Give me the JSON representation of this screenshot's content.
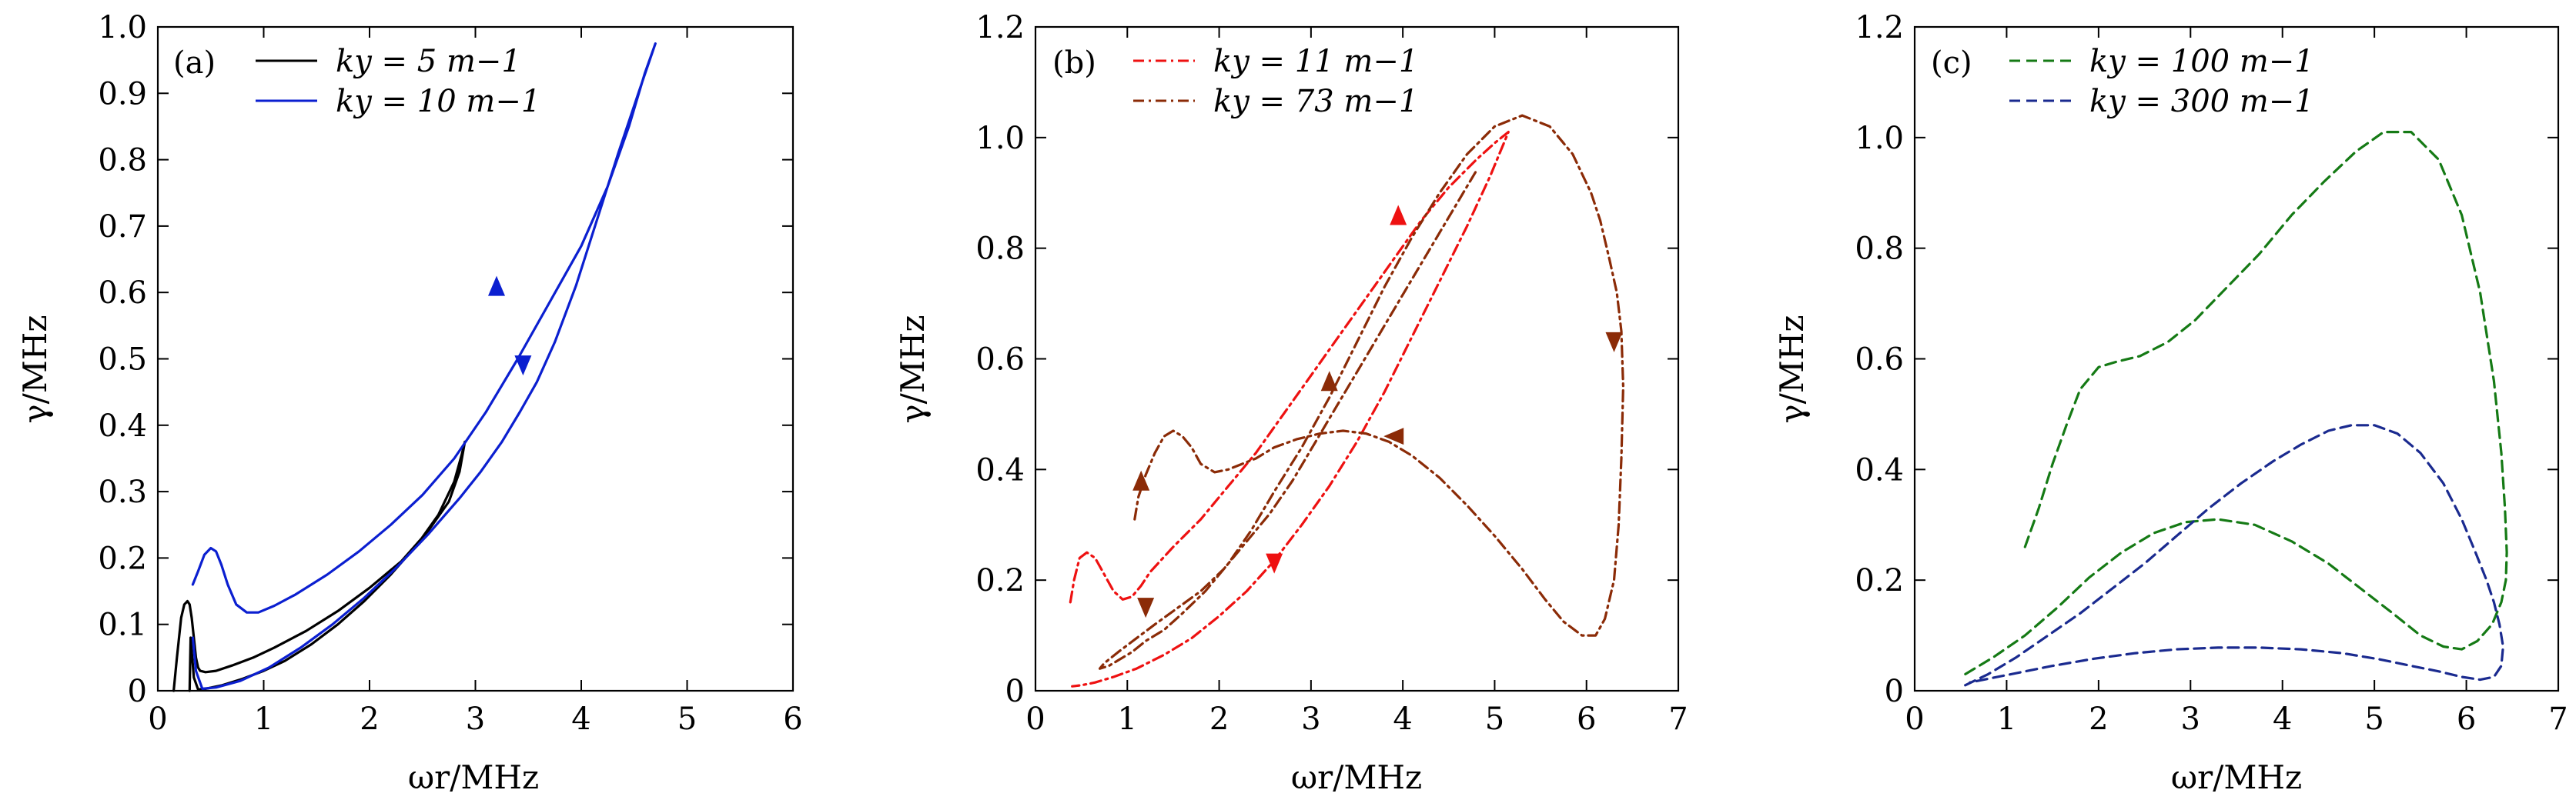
{
  "chart_data": [
    {
      "type": "line",
      "panel_label": "(a)",
      "xlabel": "ωr/MHz",
      "ylabel": "γ/MHz",
      "xlim": [
        0,
        6
      ],
      "ylim": [
        0,
        1.0
      ],
      "xticks": [
        "0",
        "1",
        "2",
        "3",
        "4",
        "5",
        "6"
      ],
      "yticks": [
        "0",
        "0.1",
        "0.2",
        "0.3",
        "0.4",
        "0.5",
        "0.6",
        "0.7",
        "0.8",
        "0.9",
        "1.0"
      ],
      "legend_position": "top-left",
      "series": [
        {
          "name": "ky = 5 m−1",
          "color": "#000000",
          "dash": "solid",
          "x": [
            0.15,
            0.18,
            0.22,
            0.25,
            0.28,
            0.3,
            0.32,
            0.34,
            0.36,
            0.38,
            0.4,
            0.45,
            0.55,
            0.7,
            0.9,
            1.1,
            1.4,
            1.7,
            2.0,
            2.3,
            2.55,
            2.75,
            2.85,
            2.9,
            2.87,
            2.8,
            2.65,
            2.45,
            2.2,
            1.95,
            1.7,
            1.45,
            1.2,
            1.0,
            0.8,
            0.6,
            0.45,
            0.38,
            0.34,
            0.32,
            0.31,
            0.3
          ],
          "y": [
            0.0,
            0.05,
            0.11,
            0.13,
            0.135,
            0.13,
            0.11,
            0.08,
            0.05,
            0.035,
            0.03,
            0.028,
            0.03,
            0.038,
            0.05,
            0.065,
            0.09,
            0.12,
            0.155,
            0.195,
            0.24,
            0.285,
            0.33,
            0.375,
            0.355,
            0.315,
            0.265,
            0.22,
            0.175,
            0.135,
            0.1,
            0.07,
            0.045,
            0.03,
            0.018,
            0.008,
            0.003,
            0.002,
            0.02,
            0.06,
            0.08,
            0.0
          ]
        },
        {
          "name": "ky = 10 m−1",
          "color": "#0b1fd0",
          "dash": "solid",
          "arrows": [
            [
              3.2,
              0.61,
              "up"
            ],
            [
              3.45,
              0.49,
              "down"
            ]
          ],
          "x": [
            0.33,
            0.38,
            0.44,
            0.5,
            0.55,
            0.6,
            0.66,
            0.74,
            0.84,
            0.95,
            1.1,
            1.3,
            1.6,
            1.9,
            2.2,
            2.5,
            2.8,
            3.1,
            3.4,
            3.7,
            4.0,
            4.25,
            4.45,
            4.6,
            4.7,
            4.55,
            4.35,
            4.15,
            3.95,
            3.75,
            3.58,
            3.42,
            3.25,
            3.05,
            2.85,
            2.55,
            2.25,
            1.95,
            1.65,
            1.35,
            1.05,
            0.78,
            0.55,
            0.42,
            0.36,
            0.33
          ],
          "y": [
            0.16,
            0.18,
            0.205,
            0.215,
            0.21,
            0.19,
            0.16,
            0.13,
            0.118,
            0.118,
            0.128,
            0.145,
            0.175,
            0.21,
            0.25,
            0.295,
            0.35,
            0.42,
            0.5,
            0.585,
            0.67,
            0.76,
            0.85,
            0.93,
            0.975,
            0.905,
            0.81,
            0.71,
            0.61,
            0.525,
            0.465,
            0.42,
            0.375,
            0.33,
            0.29,
            0.235,
            0.185,
            0.14,
            0.1,
            0.065,
            0.035,
            0.015,
            0.005,
            0.003,
            0.03,
            0.08
          ]
        }
      ]
    },
    {
      "type": "line",
      "panel_label": "(b)",
      "xlabel": "ωr/MHz",
      "ylabel": "γ/MHz",
      "xlim": [
        0,
        7
      ],
      "ylim": [
        0,
        1.2
      ],
      "xticks": [
        "0",
        "1",
        "2",
        "3",
        "4",
        "5",
        "6",
        "7"
      ],
      "yticks": [
        "0",
        "0.2",
        "0.4",
        "0.6",
        "0.8",
        "1.0",
        "1.2"
      ],
      "legend_position": "top-left",
      "series": [
        {
          "name": "ky = 11 m−1",
          "color": "#ee1111",
          "dash": "dashdot",
          "arrows": [
            [
              3.95,
              0.86,
              "up"
            ],
            [
              2.6,
              0.23,
              "down"
            ]
          ],
          "x": [
            0.38,
            0.42,
            0.48,
            0.56,
            0.65,
            0.75,
            0.85,
            0.95,
            1.05,
            1.15,
            1.25,
            1.5,
            1.8,
            2.1,
            2.4,
            2.7,
            3.0,
            3.3,
            3.6,
            3.9,
            4.2,
            4.5,
            4.8,
            5.0,
            5.15,
            5.1,
            4.95,
            4.7,
            4.4,
            4.1,
            3.8,
            3.5,
            3.2,
            2.9,
            2.6,
            2.3,
            2.0,
            1.7,
            1.4,
            1.1,
            0.85,
            0.65,
            0.5,
            0.4
          ],
          "y": [
            0.16,
            0.2,
            0.24,
            0.25,
            0.24,
            0.21,
            0.18,
            0.165,
            0.17,
            0.19,
            0.215,
            0.26,
            0.31,
            0.37,
            0.43,
            0.5,
            0.57,
            0.64,
            0.71,
            0.78,
            0.85,
            0.91,
            0.96,
            0.99,
            1.01,
            0.99,
            0.93,
            0.84,
            0.74,
            0.64,
            0.54,
            0.45,
            0.37,
            0.3,
            0.235,
            0.18,
            0.135,
            0.095,
            0.065,
            0.04,
            0.025,
            0.015,
            0.01,
            0.008
          ]
        },
        {
          "name": "ky = 73 m−1",
          "color": "#8b2b07",
          "dash": "dashdot",
          "arrows": [
            [
              1.15,
              0.38,
              "up"
            ],
            [
              1.2,
              0.15,
              "down"
            ],
            [
              3.2,
              0.56,
              "up"
            ],
            [
              6.3,
              0.63,
              "down"
            ],
            [
              3.9,
              0.46,
              "left"
            ]
          ],
          "x": [
            1.08,
            1.12,
            1.2,
            1.3,
            1.4,
            1.5,
            1.6,
            1.7,
            1.8,
            1.95,
            2.1,
            2.25,
            2.4,
            2.6,
            2.85,
            3.1,
            3.35,
            3.6,
            3.85,
            4.1,
            4.4,
            4.7,
            5.0,
            5.3,
            5.55,
            5.75,
            5.95,
            6.1,
            6.2,
            6.3,
            6.35,
            6.38,
            6.4,
            6.38,
            6.33,
            6.25,
            6.15,
            6.05,
            5.85,
            5.6,
            5.3,
            5.0,
            4.7,
            4.4,
            4.1,
            3.8,
            3.5,
            3.2,
            2.9,
            2.6,
            2.35,
            2.1,
            1.85,
            1.6,
            1.4,
            1.2,
            1.05,
            0.9,
            0.8,
            0.7,
            0.75,
            0.9,
            1.1,
            1.3,
            1.55,
            1.8,
            2.05,
            2.3,
            2.55,
            2.8,
            3.05,
            3.3,
            3.55,
            3.8,
            4.05,
            4.3,
            4.55,
            4.8
          ],
          "y": [
            0.31,
            0.35,
            0.39,
            0.43,
            0.46,
            0.47,
            0.46,
            0.44,
            0.41,
            0.395,
            0.4,
            0.41,
            0.42,
            0.44,
            0.455,
            0.465,
            0.47,
            0.465,
            0.45,
            0.425,
            0.385,
            0.335,
            0.28,
            0.22,
            0.165,
            0.125,
            0.1,
            0.1,
            0.13,
            0.2,
            0.3,
            0.42,
            0.55,
            0.65,
            0.72,
            0.78,
            0.85,
            0.9,
            0.97,
            1.02,
            1.04,
            1.02,
            0.97,
            0.9,
            0.82,
            0.73,
            0.63,
            0.53,
            0.44,
            0.36,
            0.29,
            0.23,
            0.18,
            0.14,
            0.11,
            0.09,
            0.07,
            0.055,
            0.045,
            0.04,
            0.05,
            0.07,
            0.095,
            0.12,
            0.15,
            0.18,
            0.22,
            0.27,
            0.32,
            0.38,
            0.45,
            0.52,
            0.59,
            0.66,
            0.73,
            0.8,
            0.87,
            0.94
          ]
        }
      ]
    },
    {
      "type": "line",
      "panel_label": "(c)",
      "xlabel": "ωr/MHz",
      "ylabel": "γ/MHz",
      "xlim": [
        0,
        7
      ],
      "ylim": [
        0,
        1.2
      ],
      "xticks": [
        "0",
        "1",
        "2",
        "3",
        "4",
        "5",
        "6",
        "7"
      ],
      "yticks": [
        "0",
        "0.2",
        "0.4",
        "0.6",
        "0.8",
        "1.0",
        "1.2"
      ],
      "legend_position": "top-left",
      "series": [
        {
          "name": "ky = 100 m−1",
          "color": "#157a15",
          "dash": "dashed",
          "x": [
            1.2,
            1.35,
            1.5,
            1.65,
            1.8,
            2.0,
            2.2,
            2.45,
            2.75,
            3.05,
            3.4,
            3.75,
            4.1,
            4.45,
            4.8,
            5.1,
            5.4,
            5.7,
            5.95,
            6.15,
            6.3,
            6.38,
            6.42,
            6.44,
            6.43,
            6.38,
            6.28,
            6.12,
            5.95,
            5.75,
            5.5,
            5.2,
            4.85,
            4.5,
            4.1,
            3.7,
            3.3,
            2.95,
            2.6,
            2.25,
            1.9,
            1.55,
            1.2,
            0.85,
            0.55
          ],
          "y": [
            0.26,
            0.33,
            0.41,
            0.48,
            0.545,
            0.585,
            0.595,
            0.605,
            0.63,
            0.67,
            0.73,
            0.79,
            0.86,
            0.92,
            0.975,
            1.01,
            1.01,
            0.96,
            0.86,
            0.72,
            0.56,
            0.43,
            0.33,
            0.25,
            0.2,
            0.16,
            0.12,
            0.09,
            0.075,
            0.08,
            0.1,
            0.14,
            0.185,
            0.23,
            0.27,
            0.3,
            0.31,
            0.305,
            0.285,
            0.25,
            0.205,
            0.15,
            0.1,
            0.06,
            0.03
          ]
        },
        {
          "name": "ky = 300 m−1",
          "color": "#1a2a8f",
          "dash": "dashed",
          "x": [
            0.55,
            0.8,
            1.1,
            1.45,
            1.8,
            2.15,
            2.5,
            2.85,
            3.2,
            3.55,
            3.9,
            4.2,
            4.5,
            4.75,
            5.0,
            5.25,
            5.5,
            5.75,
            5.95,
            6.1,
            6.22,
            6.3,
            6.36,
            6.4,
            6.38,
            6.3,
            6.15,
            5.95,
            5.7,
            5.4,
            5.05,
            4.65,
            4.2,
            3.75,
            3.3,
            2.85,
            2.4,
            1.95,
            1.5,
            1.05,
            0.6
          ],
          "y": [
            0.01,
            0.03,
            0.06,
            0.1,
            0.14,
            0.185,
            0.23,
            0.28,
            0.33,
            0.375,
            0.415,
            0.445,
            0.47,
            0.48,
            0.48,
            0.465,
            0.43,
            0.375,
            0.31,
            0.25,
            0.2,
            0.16,
            0.12,
            0.08,
            0.045,
            0.025,
            0.02,
            0.025,
            0.035,
            0.045,
            0.057,
            0.068,
            0.075,
            0.078,
            0.078,
            0.075,
            0.068,
            0.058,
            0.045,
            0.03,
            0.015
          ]
        }
      ]
    }
  ]
}
